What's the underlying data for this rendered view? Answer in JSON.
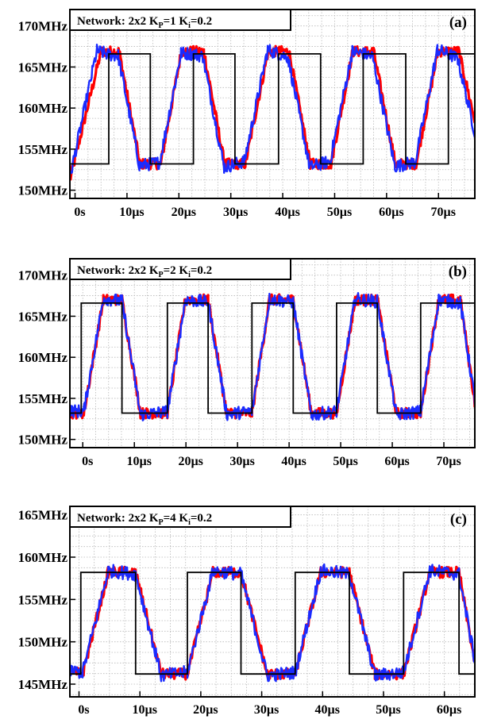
{
  "chart_data": [
    {
      "type": "line",
      "panel_label": "(a)",
      "annotation": {
        "prefix": "Network: 2x2",
        "kp_value": "1",
        "ki_value": "0.2"
      },
      "x_unit_labels": [
        "0s",
        "10µs",
        "20µs",
        "30µs",
        "40µs",
        "50µs",
        "60µs",
        "70µs"
      ],
      "x_ticks": [
        0,
        10,
        20,
        30,
        40,
        50,
        60,
        70
      ],
      "xlim": [
        -1,
        77
      ],
      "y_unit_labels": [
        "150MHz",
        "155MHz",
        "160MHz",
        "165MHz",
        "170MHz"
      ],
      "y_ticks": [
        150,
        155,
        160,
        165,
        170
      ],
      "ylim": [
        149,
        172
      ],
      "grid": true,
      "colors": {
        "reference": "#000000",
        "red": "#ff0000",
        "blue": "#1a2bff"
      },
      "reference": {
        "x": [
          -1,
          6.5,
          6.5,
          14.5,
          14.5,
          22.8,
          22.8,
          30.8,
          30.8,
          39.2,
          39.2,
          47.3,
          47.3,
          55.5,
          55.5,
          63.7,
          63.7,
          71.9,
          71.9,
          77
        ],
        "y": [
          153.2,
          153.2,
          166.6,
          166.6,
          153.2,
          153.2,
          166.6,
          166.6,
          153.2,
          153.2,
          166.6,
          166.6,
          153.2,
          153.2,
          166.6,
          166.6,
          153.2,
          153.2,
          166.6,
          166.6
        ]
      },
      "red_series": {
        "x": [
          -1,
          5,
          6.5,
          8.5,
          12.5,
          14.5,
          16.5,
          20.5,
          22.8,
          24.8,
          28.8,
          30.8,
          32.8,
          37.2,
          39.2,
          41.2,
          45.3,
          47.3,
          49.3,
          53.5,
          55.5,
          57.5,
          61.7,
          63.7,
          65.7,
          69.9,
          71.9,
          73.9,
          77
        ],
        "y": [
          151.2,
          166.9,
          166.9,
          166.9,
          153.2,
          153.2,
          153.2,
          166.9,
          166.9,
          166.9,
          153.2,
          153.2,
          153.2,
          166.9,
          166.9,
          166.9,
          153.2,
          153.2,
          153.2,
          166.9,
          166.9,
          166.9,
          153.2,
          153.2,
          153.2,
          166.9,
          166.9,
          166.9,
          158.5
        ]
      },
      "blue_series": {
        "x": [
          -1,
          4.2,
          6.5,
          8.3,
          12.4,
          14.5,
          16.3,
          20.4,
          22.8,
          24.6,
          28.7,
          30.8,
          32.6,
          37.1,
          39.2,
          41.0,
          45.2,
          47.3,
          49.1,
          53.4,
          55.5,
          57.3,
          61.6,
          63.7,
          65.5,
          69.8,
          71.9,
          73.7,
          77
        ],
        "y": [
          151.5,
          167.0,
          166.5,
          166.4,
          153.0,
          153.2,
          153.4,
          166.7,
          166.6,
          166.3,
          152.8,
          153.2,
          153.5,
          167.1,
          166.6,
          166.2,
          152.8,
          153.2,
          153.5,
          166.9,
          166.6,
          166.3,
          152.9,
          153.2,
          153.4,
          167.1,
          166.6,
          166.0,
          157.0
        ]
      }
    },
    {
      "type": "line",
      "panel_label": "(b)",
      "annotation": {
        "prefix": "Network: 2x2",
        "kp_value": "2",
        "ki_value": "0.2"
      },
      "x_unit_labels": [
        "0s",
        "10µs",
        "20µs",
        "30µs",
        "40µs",
        "50µs",
        "60µs",
        "70µs"
      ],
      "x_ticks": [
        0,
        10,
        20,
        30,
        40,
        50,
        60,
        70
      ],
      "xlim": [
        -2.5,
        76
      ],
      "y_unit_labels": [
        "150MHz",
        "155MHz",
        "160MHz",
        "165MHz",
        "170MHz"
      ],
      "y_ticks": [
        150,
        155,
        160,
        165,
        170
      ],
      "ylim": [
        149,
        172
      ],
      "grid": true,
      "colors": {
        "reference": "#000000",
        "red": "#ff0000",
        "blue": "#1a2bff"
      },
      "reference": {
        "x": [
          -2.5,
          -0.3,
          -0.3,
          7.6,
          7.6,
          16.4,
          16.4,
          24.3,
          24.3,
          32.8,
          32.8,
          40.8,
          40.8,
          49.2,
          49.2,
          57.1,
          57.1,
          65.5,
          65.5,
          76
        ],
        "y": [
          153.2,
          153.2,
          166.6,
          166.6,
          153.2,
          153.2,
          166.6,
          166.6,
          153.2,
          153.2,
          166.6,
          166.6,
          153.2,
          153.2,
          166.6,
          166.6,
          153.2,
          153.2,
          166.6,
          166.6
        ]
      },
      "red_series": {
        "x": [
          -2.5,
          0.2,
          4.0,
          7.6,
          11.2,
          16.4,
          19.9,
          24.3,
          27.9,
          32.8,
          36.2,
          40.8,
          44.3,
          49.2,
          52.8,
          57.1,
          60.8,
          65.5,
          69.0,
          73.2,
          76
        ],
        "y": [
          153.2,
          153.2,
          167.0,
          167.0,
          153.2,
          153.2,
          167.0,
          167.0,
          153.2,
          153.2,
          167.0,
          167.0,
          153.2,
          153.2,
          167.0,
          167.0,
          153.2,
          153.2,
          167.0,
          167.0,
          154.5
        ]
      },
      "blue_series": {
        "x": [
          -2.5,
          0.2,
          4.0,
          7.6,
          11.2,
          16.4,
          19.9,
          24.3,
          27.9,
          32.8,
          36.2,
          40.8,
          44.3,
          49.2,
          52.8,
          57.1,
          60.8,
          65.5,
          69.0,
          73.2,
          76
        ],
        "y": [
          153.5,
          153.4,
          167.2,
          166.8,
          153.0,
          153.4,
          167.0,
          166.7,
          153.1,
          153.4,
          167.1,
          166.7,
          153.0,
          153.4,
          167.1,
          166.8,
          153.0,
          153.4,
          167.0,
          166.6,
          154.8
        ]
      }
    },
    {
      "type": "line",
      "panel_label": "(c)",
      "annotation": {
        "prefix": "Network: 2x2",
        "kp_value": "4",
        "ki_value": "0.2"
      },
      "x_unit_labels": [
        "0s",
        "10µs",
        "20µs",
        "30µs",
        "40µs",
        "50µs",
        "60µs"
      ],
      "x_ticks": [
        0,
        10,
        20,
        30,
        40,
        50,
        60
      ],
      "xlim": [
        -1.5,
        65
      ],
      "y_unit_labels": [
        "145MHz",
        "150MHz",
        "155MHz",
        "160MHz",
        "165MHz"
      ],
      "y_ticks": [
        145,
        150,
        155,
        160,
        165
      ],
      "ylim": [
        143.5,
        166
      ],
      "grid": true,
      "colors": {
        "reference": "#000000",
        "red": "#ff0000",
        "blue": "#1a2bff"
      },
      "reference": {
        "x": [
          -1.5,
          0.3,
          0.3,
          9.3,
          9.3,
          17.8,
          17.8,
          26.6,
          26.6,
          35.5,
          35.5,
          44.4,
          44.4,
          53.3,
          53.3,
          62.4,
          62.4,
          65
        ],
        "y": [
          146.2,
          146.2,
          158.2,
          158.2,
          146.2,
          146.2,
          158.2,
          158.2,
          146.2,
          146.2,
          158.2,
          158.2,
          146.2,
          146.2,
          158.2,
          158.2,
          146.2,
          146.2
        ]
      },
      "red_series": {
        "x": [
          -1.5,
          0.6,
          4.8,
          9.3,
          13.5,
          17.8,
          22.0,
          26.6,
          30.9,
          35.5,
          39.7,
          44.4,
          48.6,
          53.3,
          57.6,
          62.4,
          65
        ],
        "y": [
          146.5,
          146.2,
          158.2,
          158.2,
          146.2,
          146.2,
          158.2,
          158.2,
          146.2,
          146.2,
          158.2,
          158.2,
          146.2,
          146.2,
          158.2,
          158.2,
          147.5
        ]
      },
      "blue_series": {
        "x": [
          -1.5,
          0.6,
          4.8,
          9.3,
          13.5,
          17.8,
          22.0,
          26.6,
          30.9,
          35.5,
          39.7,
          44.4,
          48.6,
          53.3,
          57.6,
          62.4,
          65
        ],
        "y": [
          146.6,
          146.4,
          158.4,
          158.0,
          146.0,
          146.4,
          158.4,
          158.0,
          146.0,
          146.4,
          158.4,
          158.0,
          146.0,
          146.4,
          158.4,
          158.0,
          147.8
        ]
      }
    }
  ]
}
